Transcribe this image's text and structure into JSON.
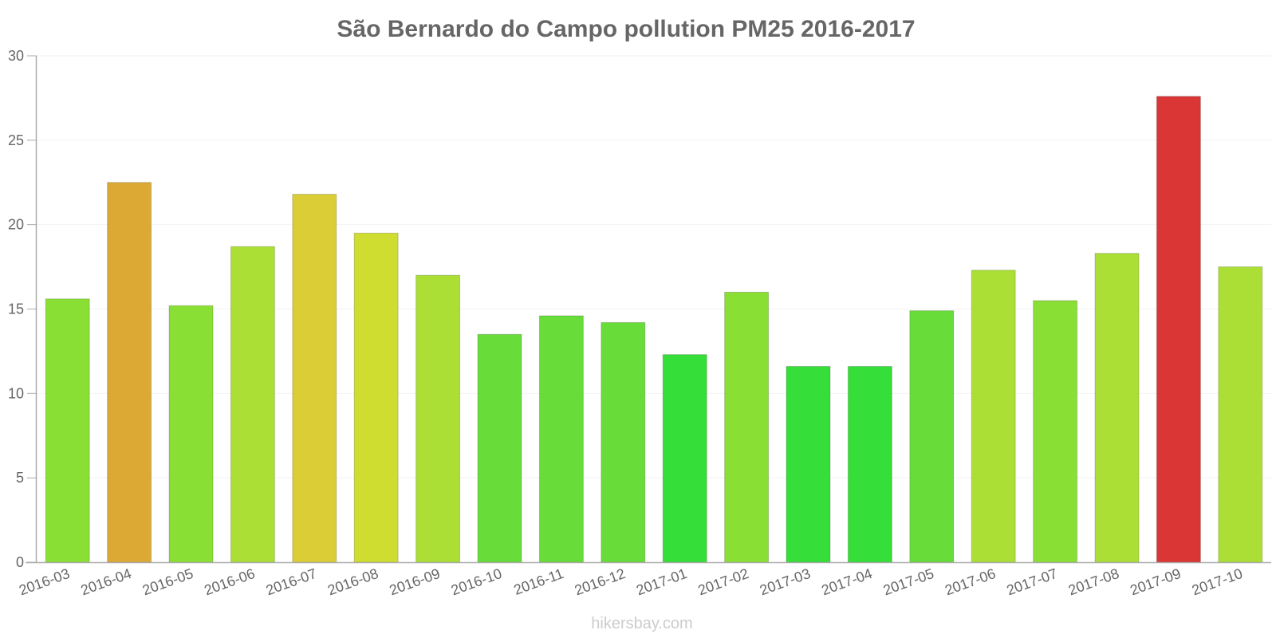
{
  "chart_data": {
    "type": "bar",
    "title": "São Bernardo do Campo pollution PM25 2016-2017",
    "xlabel": "",
    "ylabel": "",
    "ylim": [
      0,
      30
    ],
    "yticks": [
      "0",
      "5",
      "10",
      "15",
      "20",
      "25",
      "30"
    ],
    "grid": true,
    "categories": [
      "2016-03",
      "2016-04",
      "2016-05",
      "2016-06",
      "2016-07",
      "2016-08",
      "2016-09",
      "2016-10",
      "2016-11",
      "2016-12",
      "2017-01",
      "2017-02",
      "2017-03",
      "2017-04",
      "2017-05",
      "2017-06",
      "2017-07",
      "2017-08",
      "2017-09",
      "2017-10"
    ],
    "values": [
      15.6,
      22.5,
      15.2,
      18.7,
      21.8,
      19.5,
      17.0,
      13.5,
      14.6,
      14.2,
      12.3,
      16.0,
      11.6,
      11.6,
      14.9,
      17.3,
      15.5,
      18.3,
      27.6,
      17.5
    ],
    "colors": [
      "#8adf35",
      "#dca935",
      "#8adf35",
      "#abdf35",
      "#dbcd35",
      "#cedd30",
      "#abdf35",
      "#68dd3a",
      "#68dd3a",
      "#68dd3a",
      "#35de38",
      "#8adf35",
      "#35de38",
      "#35de38",
      "#68dd3a",
      "#abdf35",
      "#8adf35",
      "#abdf35",
      "#da3636",
      "#abdf35"
    ],
    "watermark": "hikersbay.com"
  }
}
